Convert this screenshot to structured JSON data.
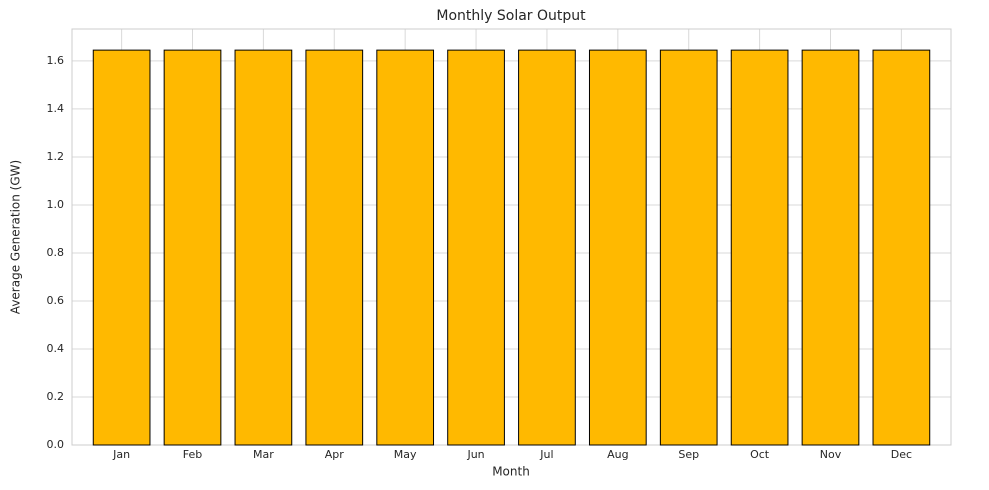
{
  "chart_data": {
    "type": "bar",
    "title": "Monthly Solar Output",
    "x_label": "Month",
    "y_label": "Average Generation (GW)",
    "categories": [
      "Jan",
      "Feb",
      "Mar",
      "Apr",
      "May",
      "Jun",
      "Jul",
      "Aug",
      "Sep",
      "Oct",
      "Nov",
      "Dec"
    ],
    "values": [
      1.645,
      1.645,
      1.645,
      1.645,
      1.645,
      1.645,
      1.645,
      1.645,
      1.645,
      1.645,
      1.645,
      1.645
    ],
    "color": "#ffb900",
    "edgecolor": "#000000",
    "ylim": [
      0,
      1.733
    ],
    "yticks": [
      {
        "value": 0,
        "label": "0.0"
      },
      0.2,
      0.4,
      0.6,
      0.8,
      {
        "value": 1,
        "label": "1.0"
      },
      1.2,
      1.4,
      1.6
    ],
    "grid": true
  }
}
